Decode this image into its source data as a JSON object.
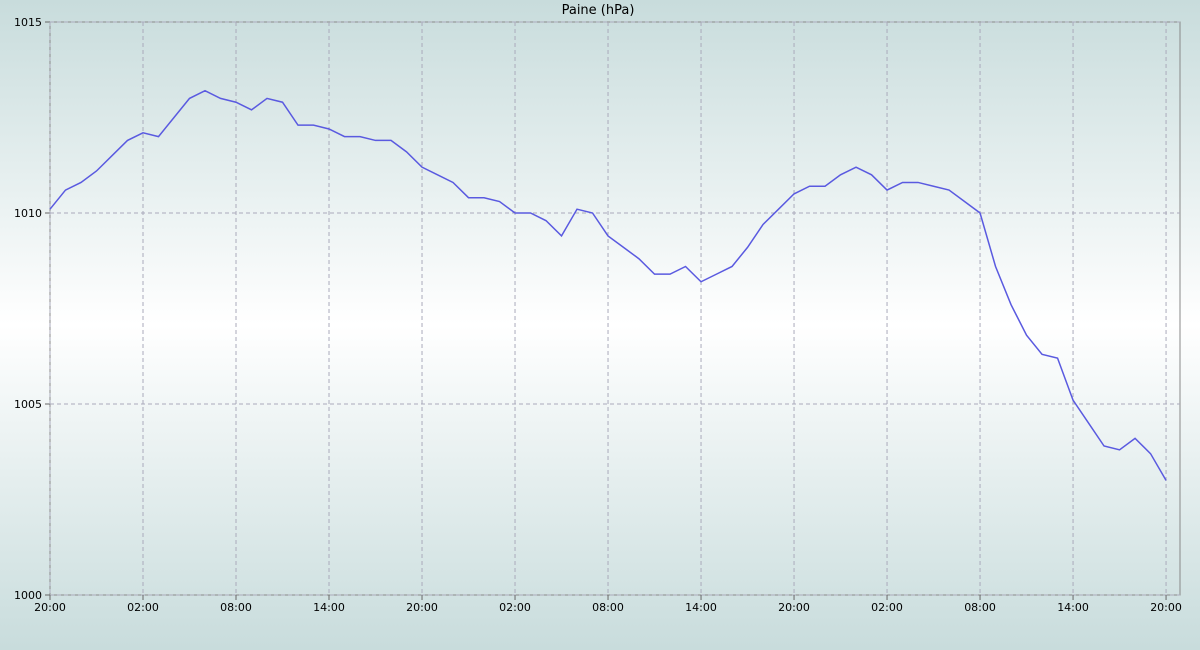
{
  "chart_data": {
    "type": "line",
    "title": "Paine (hPa)",
    "x": [
      0,
      1,
      2,
      3,
      4,
      5,
      6,
      7,
      8,
      9,
      10,
      11,
      12,
      13,
      14,
      15,
      16,
      17,
      18,
      19,
      20,
      21,
      22,
      23,
      24,
      25,
      26,
      27,
      28,
      29,
      30,
      31,
      32,
      33,
      34,
      35,
      36,
      37,
      38,
      39,
      40,
      41,
      42,
      43,
      44,
      45,
      46,
      47,
      48,
      49,
      50,
      51,
      52,
      53,
      54,
      55,
      56,
      57,
      58,
      59,
      60,
      61,
      62,
      63,
      64,
      65,
      66,
      67,
      68,
      69,
      70,
      71,
      72
    ],
    "series": [
      {
        "name": "Paine",
        "color": "#5a5ae0",
        "values": [
          1010.1,
          1010.6,
          1010.8,
          1011.1,
          1011.5,
          1011.9,
          1012.1,
          1012.0,
          1012.5,
          1013.0,
          1013.2,
          1013.0,
          1012.9,
          1012.7,
          1013.0,
          1012.9,
          1012.3,
          1012.3,
          1012.2,
          1012.0,
          1012.0,
          1011.9,
          1011.9,
          1011.6,
          1011.2,
          1011.0,
          1010.8,
          1010.4,
          1010.4,
          1010.3,
          1010.0,
          1010.0,
          1009.8,
          1009.4,
          1010.1,
          1010.0,
          1009.4,
          1009.1,
          1008.8,
          1008.4,
          1008.4,
          1008.6,
          1008.2,
          1008.4,
          1008.6,
          1009.1,
          1009.7,
          1010.1,
          1010.5,
          1010.7,
          1010.7,
          1011.0,
          1011.2,
          1011.0,
          1010.6,
          1010.8,
          1010.8,
          1010.7,
          1010.6,
          1010.3,
          1010.0,
          1008.6,
          1007.6,
          1006.8,
          1006.3,
          1006.2,
          1005.1,
          1004.5,
          1003.9,
          1003.8,
          1004.1,
          1003.7,
          1003.0
        ]
      }
    ],
    "xlim": [
      0,
      72.9
    ],
    "xticks": [
      {
        "value": 0,
        "label": "20:00"
      },
      {
        "value": 6,
        "label": "02:00"
      },
      {
        "value": 12,
        "label": "08:00"
      },
      {
        "value": 18,
        "label": "14:00"
      },
      {
        "value": 24,
        "label": "20:00"
      },
      {
        "value": 30,
        "label": "02:00"
      },
      {
        "value": 36,
        "label": "08:00"
      },
      {
        "value": 42,
        "label": "14:00"
      },
      {
        "value": 48,
        "label": "20:00"
      },
      {
        "value": 54,
        "label": "02:00"
      },
      {
        "value": 60,
        "label": "08:00"
      },
      {
        "value": 66,
        "label": "14:00"
      },
      {
        "value": 72,
        "label": "20:00"
      }
    ],
    "ylim": [
      1000,
      1015
    ],
    "yticks": [
      1000,
      1005,
      1010,
      1015
    ],
    "grid": true
  }
}
